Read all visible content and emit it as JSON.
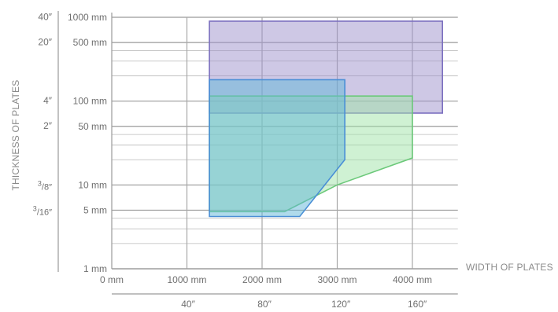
{
  "chart_data": {
    "type": "area",
    "xlabel": "WIDTH OF PLATES",
    "ylabel": "THICKNESS OF PLATES",
    "x_axis_mm": {
      "range": [
        0,
        4500
      ],
      "ticks": [
        {
          "value": 0,
          "label": "0 mm"
        },
        {
          "value": 1000,
          "label": "1000 mm"
        },
        {
          "value": 2000,
          "label": "2000 mm"
        },
        {
          "value": 3000,
          "label": "3000 mm"
        },
        {
          "value": 4000,
          "label": "4000 mm"
        }
      ]
    },
    "x_axis_inch": {
      "ticks": [
        {
          "value": 1016,
          "label": "40″"
        },
        {
          "value": 2032,
          "label": "80″"
        },
        {
          "value": 3048,
          "label": "120″"
        },
        {
          "value": 4064,
          "label": "160″"
        }
      ]
    },
    "y_axis_mm": {
      "scale": "log",
      "range": [
        1,
        1000
      ],
      "ticks": [
        {
          "value": 1000,
          "label": "1000 mm"
        },
        {
          "value": 500,
          "label": "500 mm"
        },
        {
          "value": 100,
          "label": "100 mm"
        },
        {
          "value": 50,
          "label": "50 mm"
        },
        {
          "value": 10,
          "label": "10 mm"
        },
        {
          "value": 5,
          "label": "5 mm"
        },
        {
          "value": 1,
          "label": "1 mm"
        }
      ],
      "minor_ticks": [
        400,
        300,
        200,
        40,
        30,
        20,
        4,
        3,
        2
      ]
    },
    "y_axis_inch": {
      "ticks": [
        {
          "value": 1016,
          "label": "40″"
        },
        {
          "value": 508,
          "label": "20″"
        },
        {
          "value": 101.6,
          "label": "4″"
        },
        {
          "value": 50.8,
          "label": "2″"
        },
        {
          "value": 9.525,
          "label": "3/8″",
          "num": "3",
          "den": "8"
        },
        {
          "value": 4.7625,
          "label": "3/16″",
          "num": "3",
          "den": "16"
        }
      ]
    },
    "grid": true,
    "series": [
      {
        "color": "#9d92cc",
        "stroke": "#7b6fbf",
        "points": [
          [
            1300,
            900
          ],
          [
            4400,
            900
          ],
          [
            4400,
            72
          ],
          [
            1300,
            72
          ]
        ]
      },
      {
        "color": "#9fe3a8",
        "stroke": "#6cc97a",
        "points": [
          [
            1300,
            115
          ],
          [
            4000,
            115
          ],
          [
            4000,
            21
          ],
          [
            3000,
            10
          ],
          [
            2300,
            4.8
          ],
          [
            1300,
            4.8
          ]
        ]
      },
      {
        "color": "#5fb6d8",
        "stroke": "#4a8fd6",
        "points": [
          [
            1300,
            180
          ],
          [
            3100,
            180
          ],
          [
            3100,
            20
          ],
          [
            2500,
            4.2
          ],
          [
            1300,
            4.2
          ]
        ]
      }
    ]
  }
}
